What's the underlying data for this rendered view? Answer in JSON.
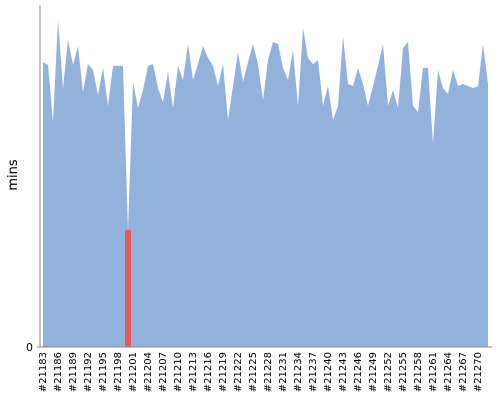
{
  "chart_data": {
    "type": "area",
    "y_label": "mins",
    "categories": [
      "#21183",
      null,
      null,
      "#21186",
      null,
      null,
      "#21189",
      null,
      null,
      "#21192",
      null,
      null,
      "#21195",
      null,
      null,
      "#21198",
      null,
      null,
      "#21201",
      null,
      null,
      "#21204",
      null,
      null,
      "#21207",
      null,
      null,
      "#21210",
      null,
      null,
      "#21213",
      null,
      null,
      "#21216",
      null,
      null,
      "#21219",
      null,
      null,
      "#21222",
      null,
      null,
      "#21225",
      null,
      null,
      "#21228",
      null,
      null,
      "#21231",
      null,
      null,
      "#21234",
      null,
      null,
      "#21237",
      null,
      null,
      "#21240",
      null,
      null,
      "#21243",
      null,
      null,
      "#21246",
      null,
      null,
      "#21249",
      null,
      null,
      "#21252",
      null,
      null,
      "#21255",
      null,
      null,
      "#21258",
      null,
      null,
      "#21261",
      null,
      null,
      "#21264",
      null,
      null,
      "#21267",
      null,
      null,
      "#21270",
      null,
      null
    ],
    "values": [
      83.3,
      82.5,
      65.8,
      95.6,
      75.7,
      89.8,
      82.5,
      88.0,
      74.6,
      82.7,
      81.0,
      73.7,
      81.6,
      70.5,
      82.2,
      82.2,
      82.2,
      34.2,
      77.5,
      69.9,
      75.1,
      82.2,
      82.7,
      75.7,
      71.6,
      80.4,
      69.9,
      82.2,
      78.1,
      88.6,
      78.1,
      82.7,
      88.0,
      84.5,
      82.2,
      76.3,
      82.7,
      66.4,
      76.3,
      86.3,
      77.5,
      83.3,
      88.6,
      82.7,
      72.2,
      83.9,
      89.2,
      88.6,
      81.6,
      78.1,
      86.8,
      70.5,
      93.3,
      84.5,
      82.7,
      83.9,
      70.5,
      76.3,
      66.4,
      70.5,
      90.9,
      76.9,
      76.3,
      81.6,
      76.9,
      70.5,
      76.3,
      82.2,
      88.6,
      70.5,
      75.1,
      69.9,
      87.4,
      89.2,
      70.5,
      68.7,
      81.6,
      81.6,
      59.4,
      81.0,
      75.7,
      74.0,
      81.0,
      76.3,
      76.9,
      76.3,
      75.7,
      76.3,
      88.6,
      76.9
    ],
    "color": "#92b2dc",
    "failed": [
      17
    ],
    "failed_color": "#e35a5a",
    "ylim": [
      0,
      100
    ],
    "yticks": [
      0
    ]
  }
}
